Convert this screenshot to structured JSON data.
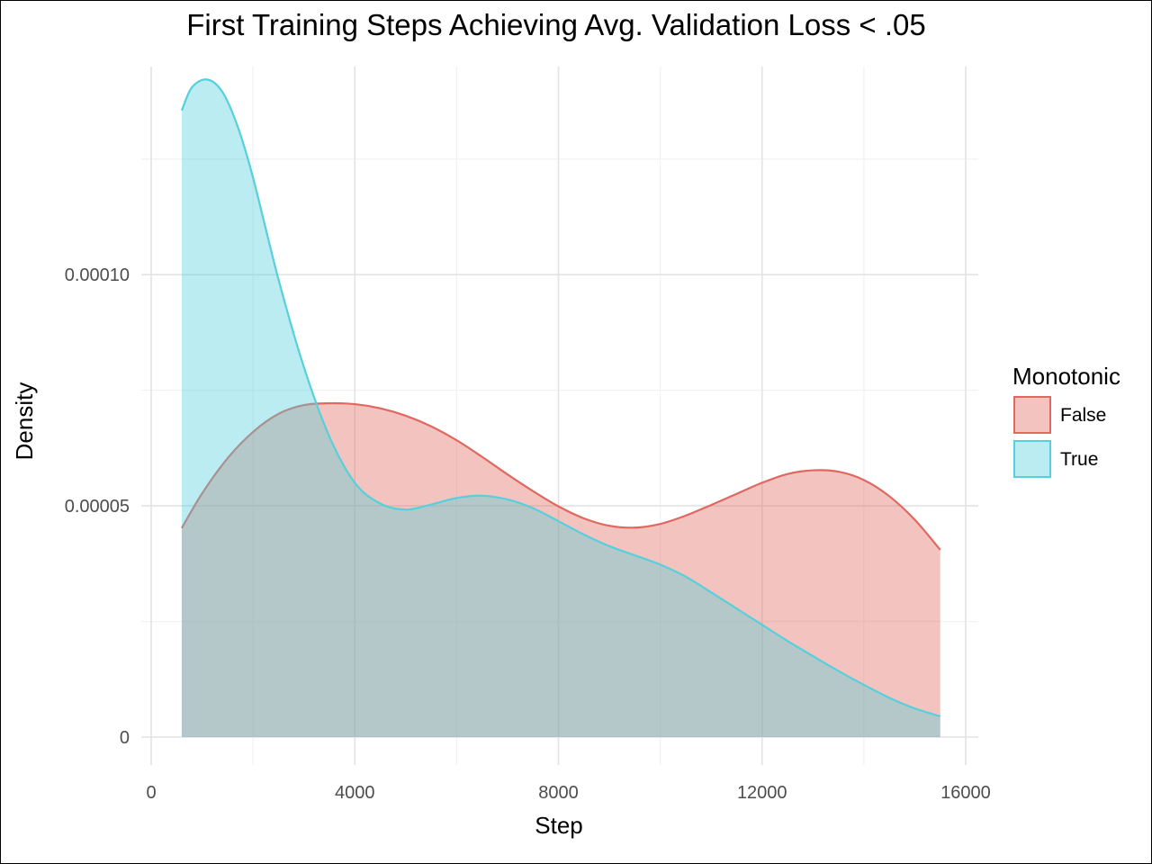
{
  "chart_data": {
    "type": "area",
    "title": "First Training Steps Achieving Avg. Validation Loss < .05",
    "xlabel": "Step",
    "ylabel": "Density",
    "xlim": [
      0,
      16000
    ],
    "ylim": [
      0,
      0.000145
    ],
    "x_ticks": [
      0,
      4000,
      8000,
      12000,
      16000
    ],
    "x_tick_labels": [
      "0",
      "4000",
      "8000",
      "12000",
      "16000"
    ],
    "y_ticks": [
      0,
      5e-05,
      0.0001
    ],
    "y_tick_labels": [
      "0",
      "0.00005",
      "0.00010"
    ],
    "grid": true,
    "legend_position": "right",
    "legend_title": "Monotonic",
    "series": [
      {
        "name": "False",
        "color": "#e06860",
        "fill": "#f0bdba",
        "x": [
          600,
          1000,
          1500,
          2000,
          2500,
          3000,
          3500,
          4000,
          4500,
          5000,
          5500,
          6000,
          6500,
          7000,
          7500,
          8000,
          8500,
          9000,
          9500,
          10000,
          10500,
          11000,
          11500,
          12000,
          12500,
          13000,
          13500,
          14000,
          14500,
          15000,
          15500
        ],
        "y": [
          4.52e-05,
          5.27e-05,
          6.03e-05,
          6.6e-05,
          6.99e-05,
          7.18e-05,
          7.22e-05,
          7.2e-05,
          7.11e-05,
          6.95e-05,
          6.72e-05,
          6.42e-05,
          6.06e-05,
          5.68e-05,
          5.32e-05,
          4.99e-05,
          4.73e-05,
          4.57e-05,
          4.53e-05,
          4.61e-05,
          4.79e-05,
          5.02e-05,
          5.26e-05,
          5.5e-05,
          5.69e-05,
          5.77e-05,
          5.74e-05,
          5.56e-05,
          5.21e-05,
          4.7e-05,
          4.05e-05
        ]
      },
      {
        "name": "True",
        "color": "#56d0dc",
        "fill": "#bcebee",
        "x": [
          600,
          800,
          1100,
          1400,
          1700,
          2000,
          2500,
          3000,
          3500,
          4000,
          4500,
          5000,
          5500,
          6000,
          6500,
          7000,
          7500,
          8000,
          8500,
          9000,
          9500,
          10000,
          10500,
          11000,
          11500,
          12000,
          12500,
          13000,
          13500,
          14000,
          14500,
          15000,
          15500
        ],
        "y": [
          0.0001355,
          0.0001405,
          0.0001422,
          0.0001395,
          0.000132,
          0.000121,
          9.9e-05,
          8e-05,
          6.5e-05,
          5.5e-05,
          5.05e-05,
          4.92e-05,
          5.03e-05,
          5.17e-05,
          5.22e-05,
          5.14e-05,
          4.95e-05,
          4.67e-05,
          4.38e-05,
          4.13e-05,
          3.93e-05,
          3.73e-05,
          3.47e-05,
          3.13e-05,
          2.78e-05,
          2.43e-05,
          2.08e-05,
          1.75e-05,
          1.43e-05,
          1.13e-05,
          8.5e-06,
          6.2e-06,
          4.5e-06
        ]
      }
    ]
  }
}
